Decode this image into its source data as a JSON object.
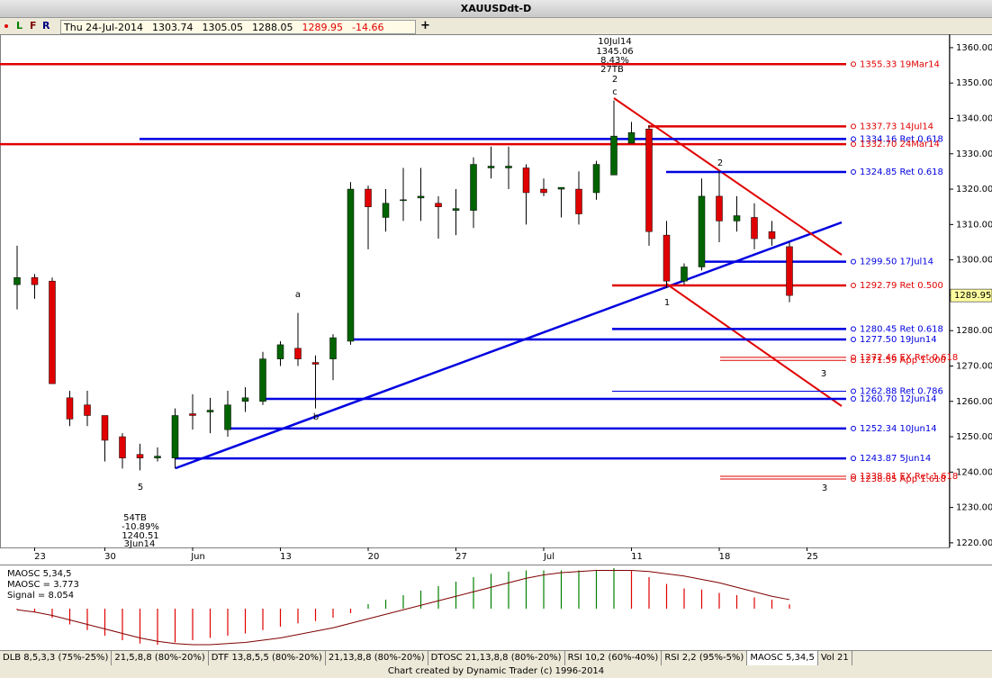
{
  "window_title": "XAUUSDdt-D",
  "toolbar": [
    "L",
    "F",
    "R",
    "+"
  ],
  "tabs": [
    "DLB 8,5,3,3 (75%-25%)",
    "21,5,8,8 (80%-20%)",
    "DTF 13,8,5,5 (80%-20%)",
    "21,13,8,8 (80%-20%)",
    "DTOSC 21,13,8,8 (80%-20%)",
    "RSI 10,2 (60%-40%)",
    "RSI 2,2 (95%-5%)",
    "MAOSC 5,34,5",
    "Vol 21"
  ],
  "active_tab": 7,
  "footer": "Chart created by Dynamic Trader  (c) 1996-2014",
  "chart_data": [
    {
      "type": "candlestick",
      "date_label": "Thu 24-Jul-2014",
      "change": -14.66,
      "up_color": "#006400",
      "down_color": "#e00000",
      "categories": [
        null,
        "23",
        null,
        null,
        null,
        "30",
        null,
        null,
        null,
        null,
        "Jun",
        null,
        null,
        null,
        null,
        "13",
        null,
        null,
        null,
        null,
        "20",
        null,
        null,
        null,
        null,
        "27",
        null,
        null,
        null,
        null,
        "Jul",
        null,
        null,
        null,
        null,
        "11",
        null,
        null,
        null,
        null,
        "18",
        null,
        null,
        null,
        null,
        "25"
      ],
      "open": [
        1293,
        1295,
        1294,
        1261,
        1259,
        1256,
        1250,
        1245,
        1244,
        1244,
        1256.5,
        1257,
        1252,
        1260,
        1260,
        1272,
        1275,
        1271,
        1272,
        1277,
        1320,
        1312,
        1317,
        1317.5,
        1316,
        1314,
        1314,
        1326,
        1326,
        1326,
        1320,
        1320,
        1320,
        1319,
        1324,
        1333,
        1337,
        1307,
        1294,
        1298,
        1318,
        1311,
        1312,
        1308,
        1303.74,
        null
      ],
      "high": [
        1304,
        1296,
        1295,
        1263,
        1263,
        1256,
        1251,
        1248,
        1247,
        1258,
        1262,
        1261,
        1263,
        1264,
        1274,
        1277,
        1285,
        1273,
        1279,
        1322,
        1321,
        1320,
        1326,
        1326,
        1318,
        1320,
        1329,
        1332,
        1332,
        1327,
        1323,
        1320,
        1325,
        1328,
        1345.06,
        1339,
        1338,
        1311,
        1299,
        1323,
        1325,
        1318,
        1316,
        1311,
        1305.05,
        null
      ],
      "low": [
        1286,
        1289,
        1265,
        1253,
        1253,
        1243,
        1241,
        1240.51,
        1243,
        1241,
        1252,
        1251,
        1250,
        1257,
        1259,
        1270,
        1270,
        1258,
        1266,
        1276,
        1303,
        1308,
        1311,
        1311,
        1306,
        1307,
        1309,
        1323,
        1320,
        1310,
        1318,
        1312,
        1310,
        1317,
        1324,
        1334,
        1304,
        1292,
        1293,
        1297,
        1305,
        1308,
        1303,
        1304,
        1288.05,
        null
      ],
      "close": [
        1295,
        1293,
        1265,
        1255,
        1256,
        1249,
        1244,
        1244,
        1244.5,
        1256,
        1256,
        1257.5,
        1259,
        1261,
        1272,
        1276,
        1272,
        1270.5,
        1278,
        1320,
        1315,
        1316,
        1317,
        1318,
        1315,
        1314.5,
        1327,
        1326.5,
        1326.5,
        1319,
        1319,
        1320.5,
        1313,
        1327,
        1335,
        1336,
        1308,
        1294,
        1298,
        1318,
        1311,
        1312.5,
        1306,
        1306,
        1289.95,
        null
      ],
      "ylim": [
        1218.7,
        1363.8
      ],
      "yticks": [
        {
          "value": 1220,
          "label": "1220.00"
        },
        {
          "value": 1230,
          "label": "1230.00"
        },
        {
          "value": 1240,
          "label": "1240.00"
        },
        {
          "value": 1250,
          "label": "1250.00"
        },
        {
          "value": 1260,
          "label": "1260.00"
        },
        {
          "value": 1270,
          "label": "1270.00"
        },
        {
          "value": 1280,
          "label": "1280.00"
        },
        {
          "value": 1290,
          "label": "1290.00"
        },
        {
          "value": 1300,
          "label": "1300.00"
        },
        {
          "value": 1310,
          "label": "1310.00"
        },
        {
          "value": 1320,
          "label": "1320.00"
        },
        {
          "value": 1330,
          "label": "1330.00"
        },
        {
          "value": 1340,
          "label": "1340.00"
        },
        {
          "value": 1350,
          "label": "1350.00"
        },
        {
          "value": 1360,
          "label": "1360.00"
        }
      ],
      "levels": [
        {
          "value": 1355.33,
          "label": "1355.33 19Mar14",
          "color": "#e00000",
          "line": "thick"
        },
        {
          "value": 1337.73,
          "label": "1337.73 14Jul14",
          "color": "#e00000",
          "line": "thick"
        },
        {
          "value": 1334.16,
          "label": "1334.16 Ret 0.618",
          "color": "#0000e0",
          "line": "thick"
        },
        {
          "value": 1332.7,
          "label": "1332.70 24Mar14",
          "color": "#e00000",
          "line": "thick"
        },
        {
          "value": 1324.85,
          "label": "1324.85 Ret 0.618",
          "color": "#0000e0",
          "line": "thick"
        },
        {
          "value": 1299.5,
          "label": "1299.50 17Jul14",
          "color": "#0000e0",
          "line": "thick"
        },
        {
          "value": 1292.79,
          "label": "1292.79 Ret 0.500",
          "color": "#e00000",
          "line": "thick"
        },
        {
          "value": 1280.45,
          "label": "1280.45 Ret 0.618",
          "color": "#0000e0",
          "line": "thick"
        },
        {
          "value": 1277.5,
          "label": "1277.50 19Jun14",
          "color": "#0000e0",
          "line": "thick"
        },
        {
          "value": 1272.46,
          "label": "1272.46 EX Ret 0.618",
          "color": "#e00000",
          "line": "thin"
        },
        {
          "value": 1271.59,
          "label": "1271.59 App 1.000",
          "color": "#e00000",
          "line": "thin"
        },
        {
          "value": 1262.88,
          "label": "1262.88 Ret 0.786",
          "color": "#0000e0",
          "line": "thin"
        },
        {
          "value": 1260.7,
          "label": "1260.70 12Jun14",
          "color": "#0000e0",
          "line": "thick"
        },
        {
          "value": 1252.34,
          "label": "1252.34 10Jun14",
          "color": "#0000e0",
          "line": "thick"
        },
        {
          "value": 1243.87,
          "label": "1243.87 5Jun14",
          "color": "#0000e0",
          "line": "thick"
        },
        {
          "value": 1238.81,
          "label": "1238.81 EX Ret 1.618",
          "color": "#e00000",
          "line": "thin"
        },
        {
          "value": 1238.05,
          "label": "1238.05 App 1.618",
          "color": "#e00000",
          "line": "thin"
        }
      ],
      "annotations": [
        "10Jul14",
        "1345.06",
        "8.43%",
        "27TB",
        "2",
        "c",
        "a",
        "b",
        "5",
        "54TB",
        "-10.89%",
        "1240.51",
        "3Jun14",
        "1",
        "2",
        "3",
        "3"
      ]
    },
    {
      "type": "oscillator",
      "title": "MAOSC 5,34,5",
      "up_color": "#008000",
      "down_color": "#e00000",
      "series": [
        {
          "name": "MAOSC = 3.773",
          "color": "#e00000",
          "values": [
            -1,
            -3,
            -8,
            -14,
            -19,
            -24,
            -28,
            -31,
            -32,
            -30,
            -28,
            -26,
            -24,
            -22,
            -19,
            -16,
            -13,
            -11,
            -8,
            -4,
            4,
            8,
            12,
            16,
            20,
            24,
            28,
            31,
            33,
            34,
            34,
            34,
            34,
            34,
            36,
            34,
            28,
            22,
            18,
            17,
            14,
            12,
            10,
            8,
            3.773,
            null
          ]
        },
        {
          "name": "Signal = 8.054",
          "color": "#800000",
          "values": [
            -1,
            -3,
            -6,
            -10,
            -14,
            -18,
            -22,
            -26,
            -29,
            -31,
            -32,
            -32,
            -31,
            -30,
            -28,
            -26,
            -23,
            -20,
            -17,
            -13,
            -9,
            -5,
            -1,
            3,
            7,
            11,
            15,
            19,
            23,
            27,
            30,
            32,
            33,
            34,
            34,
            34,
            33,
            31,
            29,
            26,
            23,
            19,
            15,
            11,
            8.054,
            null
          ]
        }
      ]
    }
  ]
}
